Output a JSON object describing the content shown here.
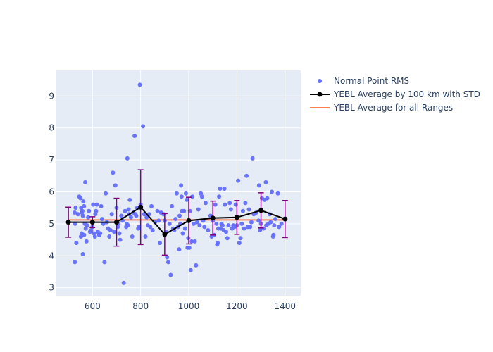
{
  "chart_data": {
    "type": "scatter",
    "xlim": [
      450,
      1465
    ],
    "ylim": [
      2.75,
      9.8
    ],
    "x_ticks": [
      600,
      800,
      1000,
      1200,
      1400
    ],
    "y_ticks": [
      3,
      4,
      5,
      6,
      7,
      8,
      9
    ],
    "grid": true,
    "legend_position": "right",
    "colors": {
      "plot_bg": "#e5ecf6",
      "grid": "#ffffff",
      "points": "#636efa",
      "average": "#000000",
      "error_bars": "#800080",
      "overall": "#ff7f50"
    },
    "series": [
      {
        "name": "Normal Point RMS",
        "kind": "markers",
        "points": [
          [
            527,
            3.8
          ],
          [
            533,
            4.4
          ],
          [
            528,
            5.0
          ],
          [
            526,
            5.35
          ],
          [
            530,
            5.5
          ],
          [
            540,
            5.3
          ],
          [
            545,
            5.85
          ],
          [
            550,
            5.8
          ],
          [
            553,
            5.5
          ],
          [
            556,
            5.35
          ],
          [
            558,
            5.4
          ],
          [
            560,
            5.25
          ],
          [
            562,
            5.7
          ],
          [
            565,
            5.55
          ],
          [
            570,
            6.3
          ],
          [
            560,
            4.05
          ],
          [
            552,
            4.6
          ],
          [
            555,
            4.7
          ],
          [
            565,
            4.65
          ],
          [
            568,
            5.0
          ],
          [
            572,
            4.85
          ],
          [
            575,
            4.45
          ],
          [
            578,
            4.95
          ],
          [
            582,
            5.2
          ],
          [
            585,
            5.4
          ],
          [
            590,
            4.75
          ],
          [
            595,
            4.8
          ],
          [
            600,
            4.9
          ],
          [
            603,
            5.6
          ],
          [
            606,
            4.7
          ],
          [
            610,
            4.6
          ],
          [
            612,
            5.3
          ],
          [
            615,
            5.4
          ],
          [
            618,
            5.6
          ],
          [
            622,
            4.75
          ],
          [
            628,
            4.65
          ],
          [
            632,
            4.7
          ],
          [
            636,
            5.55
          ],
          [
            640,
            5.15
          ],
          [
            645,
            5.0
          ],
          [
            650,
            3.8
          ],
          [
            655,
            5.95
          ],
          [
            660,
            5.05
          ],
          [
            665,
            4.85
          ],
          [
            670,
            4.6
          ],
          [
            675,
            4.8
          ],
          [
            680,
            5.3
          ],
          [
            685,
            6.6
          ],
          [
            690,
            4.75
          ],
          [
            695,
            6.2
          ],
          [
            700,
            5.5
          ],
          [
            705,
            4.9
          ],
          [
            708,
            5.0
          ],
          [
            712,
            4.7
          ],
          [
            715,
            4.5
          ],
          [
            720,
            5.25
          ],
          [
            725,
            5.1
          ],
          [
            730,
            3.15
          ],
          [
            735,
            5.4
          ],
          [
            740,
            4.9
          ],
          [
            742,
            5.0
          ],
          [
            745,
            7.05
          ],
          [
            748,
            4.95
          ],
          [
            750,
            5.45
          ],
          [
            752,
            5.3
          ],
          [
            755,
            5.75
          ],
          [
            760,
            5.2
          ],
          [
            765,
            4.6
          ],
          [
            770,
            5.35
          ],
          [
            775,
            7.75
          ],
          [
            778,
            5.3
          ],
          [
            782,
            5.25
          ],
          [
            786,
            5.5
          ],
          [
            790,
            4.85
          ],
          [
            793,
            4.9
          ],
          [
            797,
            9.35
          ],
          [
            800,
            5.6
          ],
          [
            810,
            8.05
          ],
          [
            815,
            5.3
          ],
          [
            820,
            4.6
          ],
          [
            825,
            5.2
          ],
          [
            830,
            4.95
          ],
          [
            835,
            5.3
          ],
          [
            840,
            4.9
          ],
          [
            845,
            5.55
          ],
          [
            850,
            4.8
          ],
          [
            860,
            5.05
          ],
          [
            870,
            5.4
          ],
          [
            875,
            5.1
          ],
          [
            880,
            4.4
          ],
          [
            885,
            5.35
          ],
          [
            895,
            5.3
          ],
          [
            900,
            5.1
          ],
          [
            905,
            4.75
          ],
          [
            910,
            3.95
          ],
          [
            915,
            3.8
          ],
          [
            920,
            5.0
          ],
          [
            925,
            3.4
          ],
          [
            930,
            5.55
          ],
          [
            935,
            4.85
          ],
          [
            940,
            4.8
          ],
          [
            945,
            5.15
          ],
          [
            950,
            5.95
          ],
          [
            955,
            4.9
          ],
          [
            960,
            4.2
          ],
          [
            962,
            5.25
          ],
          [
            965,
            5.0
          ],
          [
            968,
            6.2
          ],
          [
            970,
            5.85
          ],
          [
            972,
            5.4
          ],
          [
            975,
            4.7
          ],
          [
            980,
            5.4
          ],
          [
            985,
            4.85
          ],
          [
            988,
            5.95
          ],
          [
            992,
            5.75
          ],
          [
            995,
            4.25
          ],
          [
            998,
            4.55
          ],
          [
            1002,
            4.25
          ],
          [
            1005,
            5.4
          ],
          [
            1008,
            3.55
          ],
          [
            1012,
            4.45
          ],
          [
            1015,
            5.85
          ],
          [
            1020,
            5.0
          ],
          [
            1025,
            4.45
          ],
          [
            1030,
            3.7
          ],
          [
            1035,
            5.05
          ],
          [
            1040,
            5.45
          ],
          [
            1045,
            4.95
          ],
          [
            1050,
            5.95
          ],
          [
            1055,
            5.85
          ],
          [
            1060,
            5.1
          ],
          [
            1065,
            4.9
          ],
          [
            1070,
            5.65
          ],
          [
            1080,
            4.8
          ],
          [
            1090,
            5.25
          ],
          [
            1095,
            4.6
          ],
          [
            1100,
            5.1
          ],
          [
            1105,
            4.65
          ],
          [
            1110,
            5.6
          ],
          [
            1115,
            5.0
          ],
          [
            1118,
            4.35
          ],
          [
            1120,
            4.4
          ],
          [
            1123,
            4.85
          ],
          [
            1126,
            5.85
          ],
          [
            1130,
            6.1
          ],
          [
            1133,
            4.85
          ],
          [
            1136,
            5.0
          ],
          [
            1140,
            4.95
          ],
          [
            1145,
            4.8
          ],
          [
            1148,
            6.1
          ],
          [
            1150,
            5.6
          ],
          [
            1155,
            4.75
          ],
          [
            1160,
            4.55
          ],
          [
            1165,
            4.95
          ],
          [
            1170,
            5.65
          ],
          [
            1175,
            5.45
          ],
          [
            1180,
            4.85
          ],
          [
            1185,
            4.95
          ],
          [
            1190,
            4.9
          ],
          [
            1195,
            5.6
          ],
          [
            1200,
            4.95
          ],
          [
            1205,
            6.35
          ],
          [
            1210,
            4.4
          ],
          [
            1215,
            4.55
          ],
          [
            1220,
            5.0
          ],
          [
            1225,
            5.4
          ],
          [
            1230,
            4.85
          ],
          [
            1235,
            5.65
          ],
          [
            1240,
            6.5
          ],
          [
            1245,
            4.9
          ],
          [
            1250,
            5.45
          ],
          [
            1255,
            4.9
          ],
          [
            1260,
            5.05
          ],
          [
            1265,
            7.05
          ],
          [
            1270,
            5.3
          ],
          [
            1280,
            5.35
          ],
          [
            1290,
            5.1
          ],
          [
            1292,
            6.2
          ],
          [
            1296,
            4.8
          ],
          [
            1300,
            5.0
          ],
          [
            1304,
            5.8
          ],
          [
            1310,
            4.85
          ],
          [
            1315,
            5.75
          ],
          [
            1320,
            6.3
          ],
          [
            1322,
            4.95
          ],
          [
            1326,
            5.8
          ],
          [
            1330,
            5.0
          ],
          [
            1336,
            5.3
          ],
          [
            1340,
            5.05
          ],
          [
            1345,
            6.0
          ],
          [
            1350,
            4.6
          ],
          [
            1352,
            4.65
          ],
          [
            1355,
            4.95
          ],
          [
            1360,
            5.15
          ],
          [
            1370,
            5.95
          ],
          [
            1375,
            4.9
          ],
          [
            1385,
            5.0
          ]
        ]
      },
      {
        "name": "YEBL Average by 100 km with STD",
        "kind": "line+markers+error",
        "x": [
          500,
          600,
          700,
          800,
          900,
          1000,
          1100,
          1200,
          1300,
          1400
        ],
        "y": [
          5.05,
          5.05,
          5.05,
          5.52,
          4.67,
          5.1,
          5.18,
          5.2,
          5.42,
          5.15
        ],
        "error": [
          0.47,
          0.17,
          0.75,
          1.17,
          0.65,
          0.73,
          0.53,
          0.53,
          0.55,
          0.58
        ]
      },
      {
        "name": "YEBL Average for all Ranges",
        "kind": "line",
        "x": [
          500,
          1400
        ],
        "y": [
          5.12,
          5.12
        ]
      }
    ]
  }
}
